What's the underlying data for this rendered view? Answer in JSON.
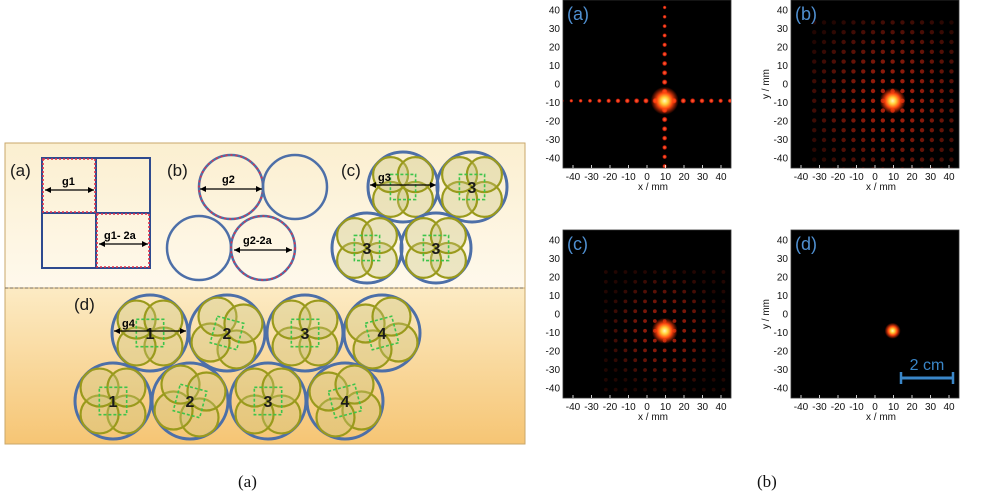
{
  "left": {
    "section_labels": [
      "(a)",
      "(b)",
      "(c)",
      "(d)"
    ],
    "gap_labels": {
      "g1": "g1",
      "g1_minus": "g1- 2a",
      "g2": "g2",
      "g2_minus": "g2-2a",
      "g3": "g3",
      "g4": "g4"
    },
    "c_numbers": [
      "3",
      "3",
      "3"
    ],
    "d_numbers": [
      "1",
      "2",
      "3",
      "4",
      "1",
      "2",
      "3",
      "4"
    ],
    "colors": {
      "top_bg": "#fdf4dc",
      "bottom_bg": "#f8cc7e",
      "square_border": "#2e4a8f",
      "dash_red": "#e0304a",
      "outer_circle": "#4d6fa8",
      "inner_circle": "#9a9a1c",
      "inner_fill": "#c9c27a",
      "green_dash": "#3cc44a"
    }
  },
  "right": {
    "panel_labels": [
      "(a)",
      "(b)",
      "(c)",
      "(d)"
    ],
    "x_axis_label": "x / mm",
    "y_axis_label": "y / mm",
    "x_ticks": [
      "-40",
      "-30",
      "-20",
      "-10",
      "0",
      "10",
      "20",
      "30",
      "40"
    ],
    "y_ticks": [
      "40",
      "30",
      "20",
      "10",
      "0",
      "-10",
      "-20",
      "-30",
      "-40"
    ],
    "scale_bar_label": "2 cm",
    "colors": {
      "panel_bg": "#000000",
      "label": "#4f8fd0",
      "spot": "#ff3a1a",
      "scale": "#3a86c8"
    }
  },
  "captions": {
    "left": "(a)",
    "right": "(b)"
  }
}
